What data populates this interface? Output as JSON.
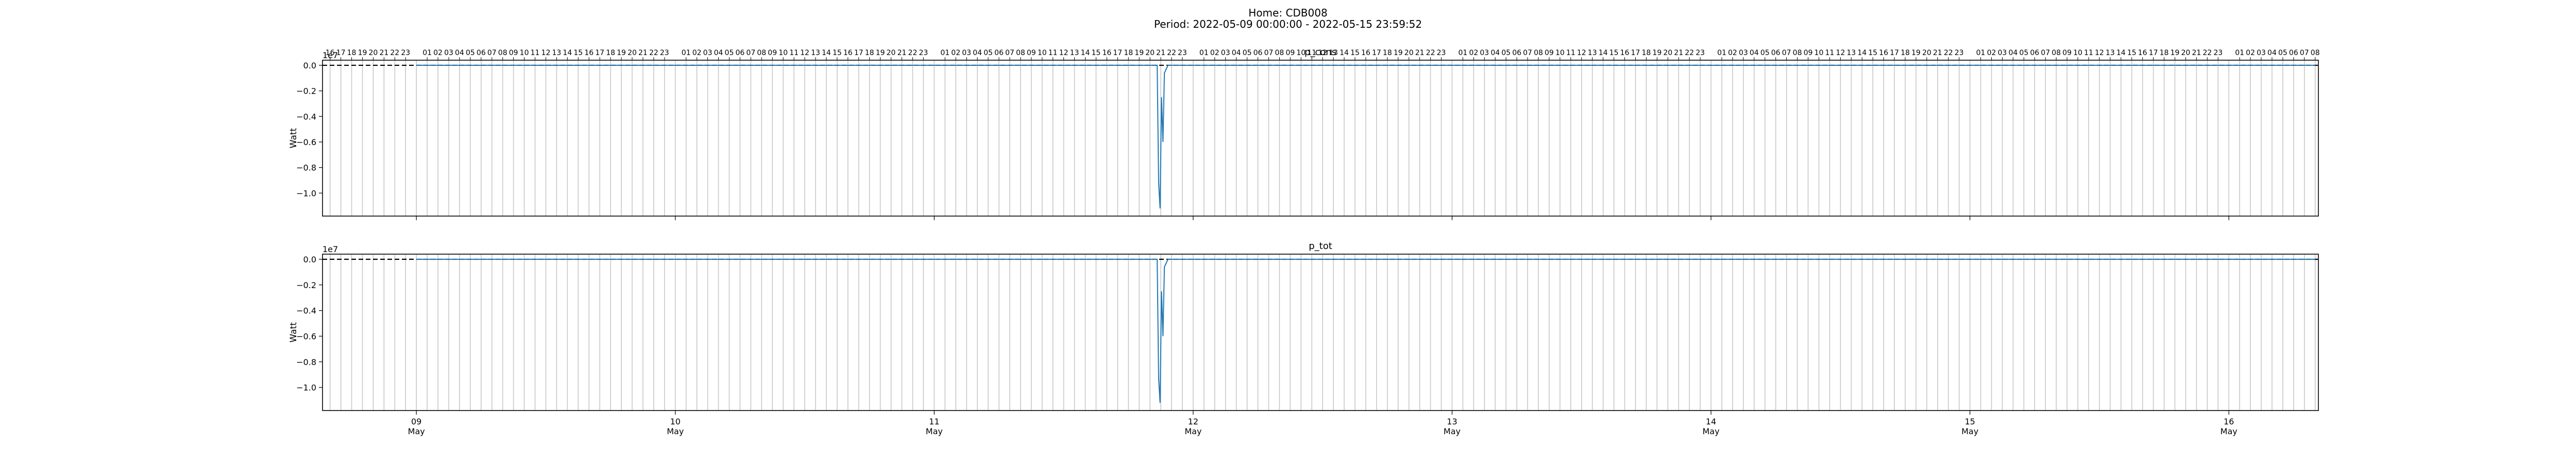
{
  "figure": {
    "title_line1": "Home: CDB008",
    "title_line2": "Period: 2022-05-09 00:00:00 - 2022-05-15 23:59:52"
  },
  "chart_data": [
    {
      "type": "line",
      "title": "p_cons",
      "ylabel": "Watt",
      "y_scale_label": "1e7",
      "y_unit_multiplier": 10000000,
      "yticks": [
        0.0,
        -0.2,
        -0.4,
        -0.6,
        -0.8,
        -1.0
      ],
      "ytick_labels": [
        "0.0",
        "−0.2",
        "−0.4",
        "−0.6",
        "−0.8",
        "−1.0"
      ],
      "ylim": [
        -1.18,
        0.04
      ],
      "xlim": [
        "2022-05-08 15:18",
        "2022-05-16 08:18"
      ],
      "hour_axis_position": "top",
      "reference_line": {
        "y": 0,
        "style": "dashed",
        "color": "#000000"
      },
      "hourly_gridlines": true,
      "series": [
        {
          "color": "#1f77b4",
          "x": [
            "2022-05-09 00:00",
            "2022-05-11 20:40",
            "2022-05-11 20:48",
            "2022-05-11 20:56",
            "2022-05-11 21:04",
            "2022-05-11 21:12",
            "2022-05-11 21:20",
            "2022-05-11 21:40",
            "2022-05-11 22:20",
            "2022-05-16 08:00"
          ],
          "y": [
            0,
            0,
            -0.92,
            -1.12,
            -0.25,
            -0.6,
            -0.06,
            0,
            0,
            0
          ]
        }
      ]
    },
    {
      "type": "line",
      "title": "p_tot",
      "ylabel": "Watt",
      "y_scale_label": "1e7",
      "y_unit_multiplier": 10000000,
      "yticks": [
        0.0,
        -0.2,
        -0.4,
        -0.6,
        -0.8,
        -1.0
      ],
      "ytick_labels": [
        "0.0",
        "−0.2",
        "−0.4",
        "−0.6",
        "−0.8",
        "−1.0"
      ],
      "ylim": [
        -1.18,
        0.04
      ],
      "xlim": [
        "2022-05-08 15:18",
        "2022-05-16 08:18"
      ],
      "reference_line": {
        "y": 0,
        "style": "dashed",
        "color": "#000000"
      },
      "hourly_gridlines": true,
      "series": [
        {
          "color": "#1f77b4",
          "x": [
            "2022-05-09 00:00",
            "2022-05-11 20:40",
            "2022-05-11 20:48",
            "2022-05-11 20:56",
            "2022-05-11 21:04",
            "2022-05-11 21:12",
            "2022-05-11 21:20",
            "2022-05-11 21:40",
            "2022-05-11 22:20",
            "2022-05-16 08:00"
          ],
          "y": [
            0,
            0,
            -0.93,
            -1.12,
            -0.25,
            -0.6,
            -0.06,
            0,
            0,
            0
          ]
        }
      ],
      "x_major_ticks": [
        {
          "date": "2022-05-09",
          "label_day": "09",
          "label_month": "May"
        },
        {
          "date": "2022-05-10",
          "label_day": "10",
          "label_month": "May"
        },
        {
          "date": "2022-05-11",
          "label_day": "11",
          "label_month": "May"
        },
        {
          "date": "2022-05-12",
          "label_day": "12",
          "label_month": "May"
        },
        {
          "date": "2022-05-13",
          "label_day": "13",
          "label_month": "May"
        },
        {
          "date": "2022-05-14",
          "label_day": "14",
          "label_month": "May"
        },
        {
          "date": "2022-05-15",
          "label_day": "15",
          "label_month": "May"
        },
        {
          "date": "2022-05-16",
          "label_day": "16",
          "label_month": "May"
        }
      ]
    }
  ]
}
